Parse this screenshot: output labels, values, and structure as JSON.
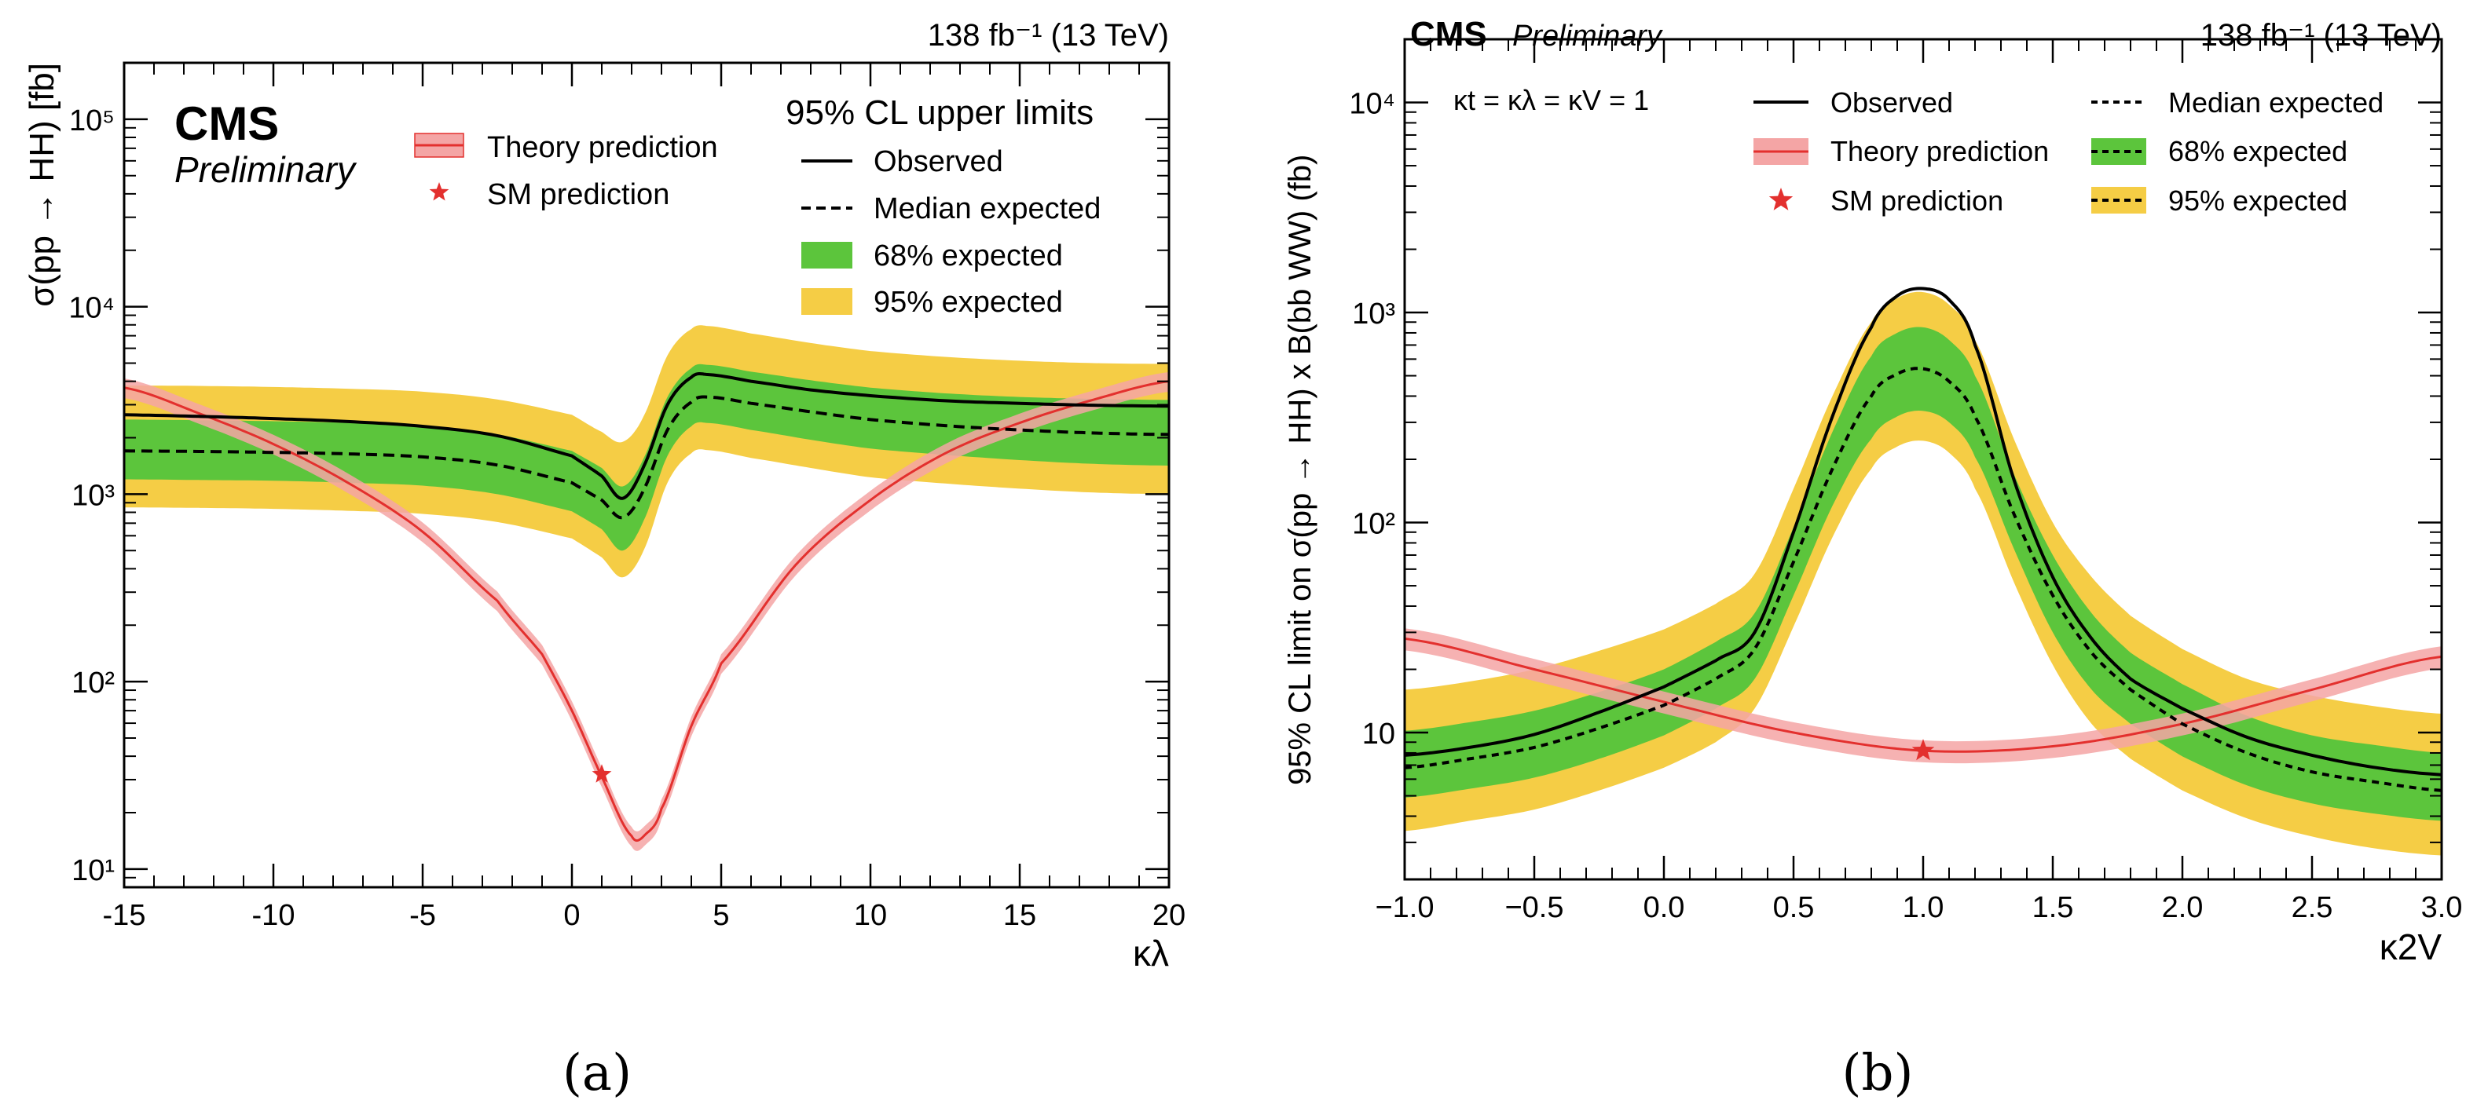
{
  "chart_data": [
    {
      "type": "line",
      "panel_caption": "(a)",
      "cms_label": "CMS",
      "cms_sublabel": "Preliminary",
      "top_right_label": "138 fb⁻¹ (13 TeV)",
      "legend_header": "95% CL upper limits",
      "xlabel": "κλ",
      "ylabel": "σ(pp → HH) [fb]",
      "x_range": [
        -15,
        20
      ],
      "y_range": [
        8,
        200000
      ],
      "y_scale": "log",
      "x_ticks": [
        -15,
        -10,
        -5,
        0,
        5,
        10,
        15,
        20
      ],
      "x_tick_labels": [
        "-15",
        "-10",
        "-5",
        "0",
        "5",
        "10",
        "15",
        "20"
      ],
      "y_ticks": [
        10,
        100,
        1000,
        10000,
        100000
      ],
      "y_tick_labels": [
        "10¹",
        "10²",
        "10³",
        "10⁴",
        "10⁵"
      ],
      "legend_left": [
        "Theory prediction",
        "SM prediction"
      ],
      "legend_right": [
        "Observed",
        "Median expected",
        "68% expected",
        "95% expected"
      ],
      "x": [
        -15,
        -12.5,
        -10,
        -7.5,
        -5,
        -2.5,
        0,
        1,
        1.7,
        2.4,
        3.2,
        4,
        4.5,
        6,
        8,
        10,
        12.5,
        15,
        17.5,
        20
      ],
      "series": [
        {
          "name": "Observed",
          "values": [
            2650,
            2600,
            2530,
            2440,
            2300,
            2050,
            1600,
            1250,
            950,
            1400,
            3000,
            4200,
            4350,
            4000,
            3600,
            3350,
            3150,
            3050,
            2980,
            2950
          ]
        },
        {
          "name": "Median expected",
          "values": [
            1700,
            1690,
            1670,
            1640,
            1580,
            1430,
            1150,
            930,
            750,
            1050,
            2200,
            3100,
            3300,
            3050,
            2750,
            2500,
            2320,
            2200,
            2120,
            2080
          ]
        },
        {
          "name": "68% expected low",
          "values": [
            1200,
            1190,
            1180,
            1150,
            1110,
            1000,
            810,
            650,
            500,
            720,
            1600,
            2300,
            2400,
            2200,
            1950,
            1750,
            1620,
            1520,
            1450,
            1420
          ]
        },
        {
          "name": "68% expected high",
          "values": [
            2500,
            2480,
            2450,
            2400,
            2300,
            2080,
            1700,
            1380,
            1100,
            1550,
            3300,
            4700,
            4900,
            4500,
            4050,
            3700,
            3450,
            3300,
            3220,
            3180
          ]
        },
        {
          "name": "95% expected low",
          "values": [
            850,
            845,
            835,
            815,
            785,
            710,
            580,
            460,
            360,
            500,
            1150,
            1650,
            1720,
            1560,
            1380,
            1230,
            1140,
            1070,
            1020,
            1000
          ]
        },
        {
          "name": "95% expected high",
          "values": [
            3800,
            3780,
            3730,
            3650,
            3520,
            3200,
            2650,
            2150,
            1900,
            2600,
            5500,
            7600,
            7900,
            7200,
            6400,
            5800,
            5400,
            5150,
            5000,
            4950
          ]
        }
      ],
      "theory": {
        "name": "Theory prediction",
        "x": [
          -15,
          -12.5,
          -10,
          -7.5,
          -5,
          -2.5,
          -1,
          0,
          1,
          2,
          2.5,
          3,
          4,
          5,
          7.5,
          10,
          12.5,
          15,
          17.5,
          20
        ],
        "values": [
          3700,
          2700,
          1850,
          1150,
          630,
          270,
          140,
          70,
          31.1,
          15,
          15.5,
          21,
          58,
          125,
          420,
          930,
          1650,
          2400,
          3200,
          4000
        ],
        "rel_band": 0.12
      },
      "sm_point": {
        "name": "SM prediction",
        "x": 1,
        "y": 32
      }
    },
    {
      "type": "line",
      "panel_caption": "(b)",
      "cms_label": "CMS",
      "cms_sublabel": "Preliminary",
      "top_right_label": "138 fb⁻¹ (13 TeV)",
      "coupling_text": "κt = κλ = κV = 1",
      "xlabel": "κ2V",
      "ylabel": "95% CL limit on σ(pp → HH) x B(bb WW) (fb)",
      "x_range": [
        -1.0,
        3.0
      ],
      "y_range": [
        2,
        20000
      ],
      "y_scale": "log",
      "x_ticks": [
        -1.0,
        -0.5,
        0.0,
        0.5,
        1.0,
        1.5,
        2.0,
        2.5,
        3.0
      ],
      "x_tick_labels": [
        "−1.0",
        "−0.5",
        "0.0",
        "0.5",
        "1.0",
        "1.5",
        "2.0",
        "2.5",
        "3.0"
      ],
      "y_ticks": [
        10,
        100,
        1000,
        10000
      ],
      "y_tick_labels": [
        "10",
        "10²",
        "10³",
        "10⁴"
      ],
      "legend_left": [
        "Observed",
        "Theory prediction",
        "SM prediction"
      ],
      "legend_right": [
        "Median expected",
        "68% expected",
        "95% expected"
      ],
      "x": [
        -1.0,
        -0.75,
        -0.5,
        -0.25,
        0.0,
        0.2,
        0.35,
        0.5,
        0.65,
        0.8,
        0.9,
        1.0,
        1.1,
        1.2,
        1.35,
        1.5,
        1.65,
        1.8,
        2.0,
        2.25,
        2.5,
        2.75,
        3.0
      ],
      "series": [
        {
          "name": "Observed",
          "values": [
            7.8,
            8.5,
            9.8,
            12.5,
            16.5,
            22,
            30,
            90,
            320,
            850,
            1200,
            1300,
            1150,
            700,
            160,
            55,
            28,
            18,
            13,
            9.5,
            7.8,
            6.8,
            6.3
          ]
        },
        {
          "name": "Median expected",
          "values": [
            6.8,
            7.5,
            8.5,
            10.5,
            13.5,
            18,
            25,
            65,
            180,
            400,
            510,
            540,
            470,
            320,
            110,
            45,
            24,
            16,
            11,
            8,
            6.5,
            5.8,
            5.3
          ]
        },
        {
          "name": "68% expected low",
          "values": [
            4.9,
            5.4,
            6.1,
            7.5,
            9.7,
            13,
            18,
            45,
            120,
            250,
            320,
            340,
            300,
            205,
            75,
            30,
            16,
            11,
            7.7,
            5.6,
            4.6,
            4.1,
            3.8
          ]
        },
        {
          "name": "68% expected high",
          "values": [
            10.2,
            11.2,
            12.7,
            15.6,
            20,
            27,
            37,
            95,
            270,
            620,
            800,
            850,
            740,
            500,
            170,
            70,
            37,
            24,
            17,
            12,
            9.7,
            8.7,
            8
          ]
        },
        {
          "name": "95% expected low",
          "values": [
            3.4,
            3.8,
            4.3,
            5.3,
            6.8,
            9,
            13,
            32,
            85,
            180,
            230,
            245,
            215,
            145,
            52,
            21,
            11,
            7.5,
            5.3,
            3.9,
            3.2,
            2.8,
            2.6
          ]
        },
        {
          "name": "95% expected high",
          "values": [
            16,
            17.5,
            20,
            24.5,
            31,
            41,
            57,
            145,
            400,
            900,
            1170,
            1250,
            1090,
            740,
            250,
            100,
            55,
            36,
            25,
            18,
            15,
            13.3,
            12.3
          ]
        }
      ],
      "theory": {
        "name": "Theory prediction",
        "x": [
          -1.0,
          -0.5,
          0.0,
          0.5,
          1.0,
          1.5,
          2.0,
          2.5,
          3.0
        ],
        "values": [
          28,
          20,
          14,
          10,
          8.2,
          8.6,
          11,
          16,
          23
        ],
        "rel_band": 0.12
      },
      "sm_point": {
        "name": "SM prediction",
        "x": 1.0,
        "y": 8.2
      }
    }
  ]
}
